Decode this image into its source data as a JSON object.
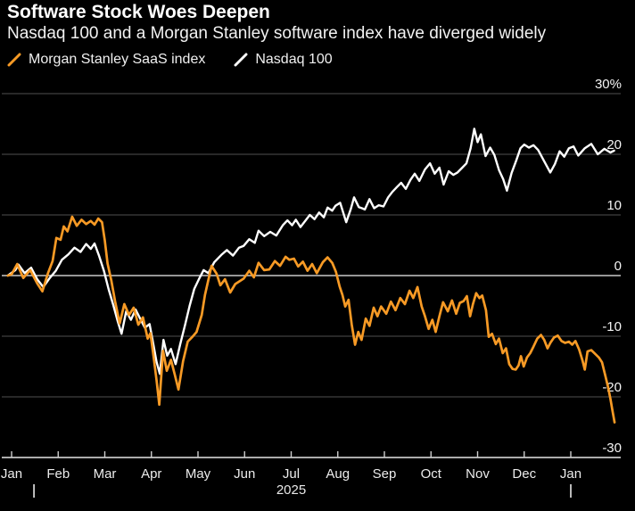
{
  "header": {
    "title": "Software Stock Woes Deepen",
    "subtitle": "Nasdaq 100 and a Morgan Stanley software index have diverged widely"
  },
  "legend": {
    "items": [
      {
        "label": "Morgan Stanley SaaS index",
        "color": "#F79A25"
      },
      {
        "label": "Nasdaq 100",
        "color": "#FFFFFF"
      }
    ]
  },
  "colors": {
    "background": "#000000",
    "grid": "#4f4f4f",
    "zero_line": "#c9c9c9",
    "axis_line": "#e5e5e5",
    "tick": "#cfcfcf",
    "axis_text": "#f5f5f5",
    "year_text": "#e8e8e8",
    "saas_line": "#F79A25",
    "nasdaq_line": "#FFFFFF"
  },
  "chart_data": {
    "type": "line",
    "title": "Software Stock Woes Deepen",
    "subtitle": "Nasdaq 100 and a Morgan Stanley software index have diverged widely",
    "ylabel": "%",
    "ylim": [
      -30,
      30
    ],
    "grid": "horizontal",
    "legend_position": "top-left",
    "y_axis": {
      "side": "right",
      "ticks": [
        {
          "value": 30,
          "label": "30%"
        },
        {
          "value": 20,
          "label": "20"
        },
        {
          "value": 10,
          "label": "10"
        },
        {
          "value": 0,
          "label": "0"
        },
        {
          "value": -10,
          "label": "-10"
        },
        {
          "value": -20,
          "label": "-20"
        },
        {
          "value": -30,
          "label": "-30"
        }
      ]
    },
    "x_axis": {
      "unit": "months",
      "range_months": [
        0,
        12.94
      ],
      "tick_months": [
        0,
        1,
        2,
        3,
        4,
        5,
        6,
        7,
        8,
        9,
        10,
        11,
        12
      ],
      "tick_labels": [
        "Jan",
        "Feb",
        "Mar",
        "Apr",
        "May",
        "Jun",
        "Jul",
        "Aug",
        "Sep",
        "Oct",
        "Nov",
        "Dec",
        "Jan"
      ],
      "year_label": "2025",
      "year_label_month": 6,
      "year_marker_months": [
        0.48,
        12.0
      ]
    },
    "series": [
      {
        "name": "Nasdaq 100",
        "color": "#FFFFFF",
        "points": [
          [
            -0.08,
            0
          ],
          [
            0.08,
            0.9
          ],
          [
            0.15,
            1.8
          ],
          [
            0.28,
            0.4
          ],
          [
            0.42,
            1.3
          ],
          [
            0.55,
            -0.6
          ],
          [
            0.68,
            -1.9
          ],
          [
            0.82,
            -0.4
          ],
          [
            0.95,
            0.8
          ],
          [
            1.08,
            2.6
          ],
          [
            1.22,
            3.5
          ],
          [
            1.35,
            4.6
          ],
          [
            1.48,
            3.9
          ],
          [
            1.6,
            5.2
          ],
          [
            1.7,
            4.4
          ],
          [
            1.78,
            5.3
          ],
          [
            1.88,
            3.2
          ],
          [
            1.98,
            0.8
          ],
          [
            2.08,
            -2.2
          ],
          [
            2.18,
            -4.8
          ],
          [
            2.28,
            -7.6
          ],
          [
            2.36,
            -9.6
          ],
          [
            2.46,
            -5.9
          ],
          [
            2.56,
            -7.3
          ],
          [
            2.66,
            -5.6
          ],
          [
            2.76,
            -7.1
          ],
          [
            2.86,
            -8.6
          ],
          [
            2.96,
            -8.0
          ],
          [
            3.04,
            -11.2
          ],
          [
            3.11,
            -14.2
          ],
          [
            3.18,
            -16.2
          ],
          [
            3.26,
            -10.6
          ],
          [
            3.34,
            -13.2
          ],
          [
            3.42,
            -12.1
          ],
          [
            3.52,
            -14.6
          ],
          [
            3.62,
            -11.3
          ],
          [
            3.72,
            -8.2
          ],
          [
            3.82,
            -5.0
          ],
          [
            3.92,
            -2.2
          ],
          [
            4.02,
            -0.6
          ],
          [
            4.12,
            0.9
          ],
          [
            4.22,
            0.4
          ],
          [
            4.35,
            2.2
          ],
          [
            4.5,
            3.4
          ],
          [
            4.62,
            4.2
          ],
          [
            4.75,
            3.3
          ],
          [
            4.88,
            4.6
          ],
          [
            4.98,
            4.9
          ],
          [
            5.1,
            6.0
          ],
          [
            5.22,
            5.4
          ],
          [
            5.3,
            7.4
          ],
          [
            5.42,
            6.5
          ],
          [
            5.55,
            7.2
          ],
          [
            5.68,
            6.6
          ],
          [
            5.82,
            8.3
          ],
          [
            5.92,
            9.1
          ],
          [
            6.02,
            8.3
          ],
          [
            6.1,
            9.2
          ],
          [
            6.2,
            8.0
          ],
          [
            6.3,
            9.0
          ],
          [
            6.4,
            10.0
          ],
          [
            6.5,
            9.3
          ],
          [
            6.6,
            10.4
          ],
          [
            6.7,
            9.6
          ],
          [
            6.78,
            11.2
          ],
          [
            6.88,
            10.7
          ],
          [
            6.95,
            11.5
          ],
          [
            7.05,
            12.0
          ],
          [
            7.18,
            8.8
          ],
          [
            7.28,
            11.0
          ],
          [
            7.35,
            12.9
          ],
          [
            7.45,
            11.3
          ],
          [
            7.52,
            11.1
          ],
          [
            7.58,
            10.9
          ],
          [
            7.68,
            12.6
          ],
          [
            7.78,
            11.1
          ],
          [
            7.88,
            11.6
          ],
          [
            7.98,
            11.4
          ],
          [
            8.08,
            12.9
          ],
          [
            8.17,
            13.8
          ],
          [
            8.27,
            14.6
          ],
          [
            8.36,
            15.3
          ],
          [
            8.46,
            14.3
          ],
          [
            8.56,
            15.8
          ],
          [
            8.65,
            16.8
          ],
          [
            8.75,
            15.6
          ],
          [
            8.87,
            17.5
          ],
          [
            8.98,
            18.5
          ],
          [
            9.08,
            16.8
          ],
          [
            9.18,
            17.8
          ],
          [
            9.27,
            15.0
          ],
          [
            9.38,
            17.2
          ],
          [
            9.48,
            16.6
          ],
          [
            9.57,
            17.0
          ],
          [
            9.67,
            17.8
          ],
          [
            9.76,
            18.5
          ],
          [
            9.85,
            21.0
          ],
          [
            9.93,
            24.2
          ],
          [
            10.0,
            22.0
          ],
          [
            10.07,
            23.3
          ],
          [
            10.17,
            19.7
          ],
          [
            10.27,
            21.1
          ],
          [
            10.36,
            19.9
          ],
          [
            10.46,
            17.4
          ],
          [
            10.55,
            15.9
          ],
          [
            10.63,
            14.0
          ],
          [
            10.73,
            16.9
          ],
          [
            10.83,
            19.0
          ],
          [
            10.92,
            21.0
          ],
          [
            11.0,
            21.6
          ],
          [
            11.1,
            21.1
          ],
          [
            11.2,
            21.5
          ],
          [
            11.3,
            20.7
          ],
          [
            11.44,
            18.7
          ],
          [
            11.56,
            17.0
          ],
          [
            11.66,
            18.4
          ],
          [
            11.76,
            20.5
          ],
          [
            11.86,
            19.6
          ],
          [
            11.96,
            21.0
          ],
          [
            12.06,
            21.3
          ],
          [
            12.16,
            19.8
          ],
          [
            12.3,
            21.0
          ],
          [
            12.44,
            21.7
          ],
          [
            12.58,
            20.0
          ],
          [
            12.72,
            20.9
          ],
          [
            12.85,
            20.3
          ],
          [
            12.93,
            20.6
          ]
        ]
      },
      {
        "name": "Morgan Stanley SaaS index",
        "color": "#F79A25",
        "points": [
          [
            -0.08,
            0
          ],
          [
            0,
            0.2
          ],
          [
            0.12,
            1.9
          ],
          [
            0.25,
            -0.4
          ],
          [
            0.4,
            0.9
          ],
          [
            0.55,
            -1.3
          ],
          [
            0.66,
            -2.6
          ],
          [
            0.78,
            0.4
          ],
          [
            0.88,
            2.4
          ],
          [
            0.96,
            6.2
          ],
          [
            1.05,
            5.9
          ],
          [
            1.12,
            8.1
          ],
          [
            1.2,
            7.3
          ],
          [
            1.3,
            9.7
          ],
          [
            1.4,
            8.2
          ],
          [
            1.5,
            9.2
          ],
          [
            1.6,
            8.5
          ],
          [
            1.7,
            9.0
          ],
          [
            1.78,
            8.4
          ],
          [
            1.86,
            9.4
          ],
          [
            1.94,
            8.8
          ],
          [
            2.0,
            5.8
          ],
          [
            2.06,
            2.0
          ],
          [
            2.14,
            -0.8
          ],
          [
            2.22,
            -4.2
          ],
          [
            2.32,
            -7.9
          ],
          [
            2.42,
            -4.7
          ],
          [
            2.52,
            -6.5
          ],
          [
            2.62,
            -5.3
          ],
          [
            2.72,
            -8.1
          ],
          [
            2.82,
            -6.9
          ],
          [
            2.92,
            -10.4
          ],
          [
            2.98,
            -9.5
          ],
          [
            3.05,
            -13.6
          ],
          [
            3.11,
            -17.2
          ],
          [
            3.17,
            -21.3
          ],
          [
            3.25,
            -12.4
          ],
          [
            3.33,
            -15.7
          ],
          [
            3.42,
            -13.9
          ],
          [
            3.5,
            -16.3
          ],
          [
            3.58,
            -18.8
          ],
          [
            3.68,
            -14.1
          ],
          [
            3.78,
            -10.9
          ],
          [
            3.88,
            -10.1
          ],
          [
            3.97,
            -9.3
          ],
          [
            4.08,
            -6.5
          ],
          [
            4.15,
            -3.2
          ],
          [
            4.22,
            -0.8
          ],
          [
            4.29,
            1.6
          ],
          [
            4.4,
            0.3
          ],
          [
            4.48,
            -1.6
          ],
          [
            4.58,
            -0.6
          ],
          [
            4.69,
            -2.8
          ],
          [
            4.8,
            -1.4
          ],
          [
            4.9,
            -0.9
          ],
          [
            4.98,
            -0.5
          ],
          [
            5.1,
            0.8
          ],
          [
            5.2,
            -0.3
          ],
          [
            5.3,
            2.1
          ],
          [
            5.42,
            0.9
          ],
          [
            5.53,
            1.0
          ],
          [
            5.65,
            2.4
          ],
          [
            5.76,
            1.6
          ],
          [
            5.88,
            3.1
          ],
          [
            5.96,
            2.6
          ],
          [
            6.06,
            2.8
          ],
          [
            6.15,
            1.5
          ],
          [
            6.25,
            2.3
          ],
          [
            6.35,
            0.8
          ],
          [
            6.45,
            1.9
          ],
          [
            6.55,
            0.4
          ],
          [
            6.68,
            2.2
          ],
          [
            6.78,
            3.0
          ],
          [
            6.88,
            2.1
          ],
          [
            6.96,
            0.6
          ],
          [
            7.04,
            -1.8
          ],
          [
            7.1,
            -3.2
          ],
          [
            7.16,
            -5.1
          ],
          [
            7.23,
            -4.0
          ],
          [
            7.3,
            -8.1
          ],
          [
            7.37,
            -11.4
          ],
          [
            7.44,
            -9.3
          ],
          [
            7.51,
            -10.6
          ],
          [
            7.6,
            -7.1
          ],
          [
            7.68,
            -8.3
          ],
          [
            7.77,
            -5.3
          ],
          [
            7.85,
            -6.7
          ],
          [
            7.93,
            -5.1
          ],
          [
            8.04,
            -6.3
          ],
          [
            8.14,
            -4.3
          ],
          [
            8.24,
            -5.7
          ],
          [
            8.34,
            -3.7
          ],
          [
            8.44,
            -4.7
          ],
          [
            8.54,
            -2.5
          ],
          [
            8.62,
            -3.7
          ],
          [
            8.71,
            -1.9
          ],
          [
            8.8,
            -5.1
          ],
          [
            8.87,
            -6.7
          ],
          [
            8.95,
            -8.8
          ],
          [
            9.03,
            -7.3
          ],
          [
            9.1,
            -9.3
          ],
          [
            9.18,
            -6.7
          ],
          [
            9.26,
            -4.4
          ],
          [
            9.36,
            -5.9
          ],
          [
            9.45,
            -4.1
          ],
          [
            9.54,
            -6.3
          ],
          [
            9.62,
            -4.5
          ],
          [
            9.7,
            -4.2
          ],
          [
            9.77,
            -3.4
          ],
          [
            9.84,
            -6.7
          ],
          [
            9.9,
            -4.7
          ],
          [
            9.97,
            -2.9
          ],
          [
            10.04,
            -3.7
          ],
          [
            10.1,
            -3.3
          ],
          [
            10.18,
            -5.7
          ],
          [
            10.24,
            -10.1
          ],
          [
            10.31,
            -9.6
          ],
          [
            10.39,
            -11.3
          ],
          [
            10.46,
            -10.4
          ],
          [
            10.54,
            -12.8
          ],
          [
            10.61,
            -12.0
          ],
          [
            10.68,
            -14.6
          ],
          [
            10.75,
            -15.4
          ],
          [
            10.82,
            -15.5
          ],
          [
            10.88,
            -14.8
          ],
          [
            10.93,
            -13.3
          ],
          [
            10.99,
            -15.0
          ],
          [
            11.06,
            -13.5
          ],
          [
            11.13,
            -12.8
          ],
          [
            11.2,
            -11.7
          ],
          [
            11.28,
            -10.4
          ],
          [
            11.36,
            -9.8
          ],
          [
            11.43,
            -10.6
          ],
          [
            11.5,
            -12.0
          ],
          [
            11.57,
            -11.0
          ],
          [
            11.64,
            -10.2
          ],
          [
            11.72,
            -9.9
          ],
          [
            11.8,
            -10.8
          ],
          [
            11.88,
            -11.1
          ],
          [
            11.96,
            -10.9
          ],
          [
            12.03,
            -11.4
          ],
          [
            12.1,
            -10.8
          ],
          [
            12.18,
            -12.2
          ],
          [
            12.25,
            -14.0
          ],
          [
            12.3,
            -15.5
          ],
          [
            12.36,
            -12.5
          ],
          [
            12.44,
            -12.3
          ],
          [
            12.52,
            -12.9
          ],
          [
            12.6,
            -13.5
          ],
          [
            12.67,
            -14.3
          ],
          [
            12.74,
            -16.5
          ],
          [
            12.8,
            -18.4
          ],
          [
            12.85,
            -20.3
          ],
          [
            12.9,
            -22.5
          ],
          [
            12.94,
            -24.2
          ]
        ]
      }
    ]
  }
}
